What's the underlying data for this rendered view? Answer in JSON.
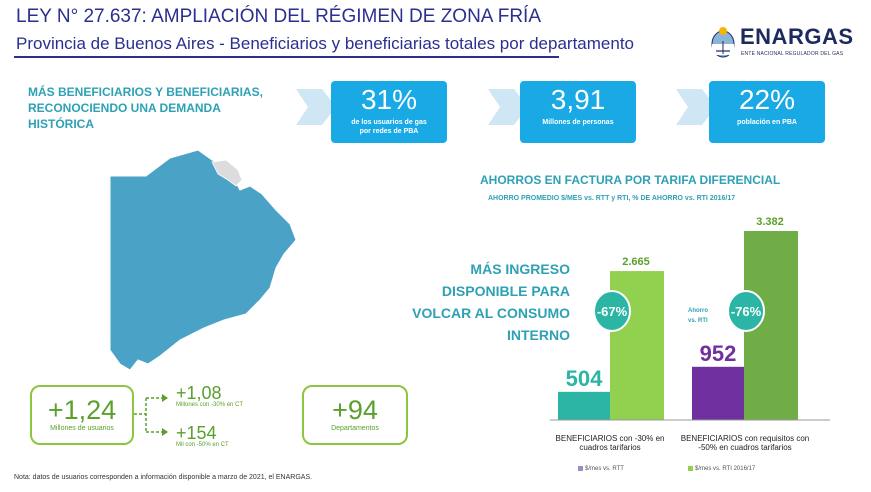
{
  "header": {
    "title": "LEY N° 27.637: AMPLIACIÓN DEL RÉGIMEN DE ZONA FRÍA",
    "subtitle": "Provincia de Buenos Aires - Beneficiarios y beneficiarias totales por departamento"
  },
  "logo": {
    "name": "ENARGAS",
    "tagline": "ENTE NACIONAL REGULADOR DEL GAS"
  },
  "headline": "MÁS BENEFICIARIOS Y BENEFICIARIAS, RECONOCIENDO UNA DEMANDA HISTÓRICA",
  "kpis": [
    {
      "value": "31%",
      "label": "de  los usuarios de gas por redes de PBA"
    },
    {
      "value": "3,91",
      "label": "Millones de personas"
    },
    {
      "value": "22%",
      "label": "población  en PBA"
    }
  ],
  "savings": {
    "title": "AHORROS EN FACTURA POR TARIFA DIFERENCIAL",
    "subtitle": "AHORRO PROMEDIO $/MES vs. RTT y RTI, % DE AHORRO vs. RTI 2016/17"
  },
  "ingreso_text": "MÁS INGRESO DISPONIBLE PARA VOLCAR AL CONSUMO INTERNO",
  "chart_data": {
    "type": "bar",
    "categories": [
      "BENEFICIARIOS con -30% en cuadros tarifarios",
      "BENEFICIARIOS con requisitos con -50% en cuadros tarifarios"
    ],
    "series": [
      {
        "name": "$/mes vs. RTT",
        "values": [
          504,
          952
        ],
        "colors": [
          "#2bb5a5",
          "#7030a0"
        ]
      },
      {
        "name": "$/mes vs. RTI 2016/17",
        "values": [
          2665,
          3382
        ],
        "colors": [
          "#92d050",
          "#70ad47"
        ]
      }
    ],
    "value_labels_first": [
      "504",
      "952"
    ],
    "value_labels_second": [
      "2.665",
      "3.382"
    ],
    "savings_pct": [
      "-67%",
      "-76%"
    ],
    "savings_note": "Ahorro vs. RTI",
    "ylim": [
      0,
      3400
    ]
  },
  "stats": {
    "main": {
      "value": "+1,24",
      "label": "Millones de usuarios"
    },
    "sub1": {
      "value": "+1,08",
      "label": "Millones con -30% en CT"
    },
    "sub2": {
      "value": "+154",
      "label": "Mil con -50% en CT"
    },
    "dept": {
      "value": "+94",
      "label": "Departamentos"
    }
  },
  "note": "Nota:  datos de usuarios corresponden a información disponible a marzo de 2021, el ENARGAS.",
  "colors": {
    "title": "#2b2f8f",
    "accent": "#2ea1b5",
    "kpi": "#19a9e5",
    "green": "#8cc63f",
    "map": "#4aa3c6"
  }
}
